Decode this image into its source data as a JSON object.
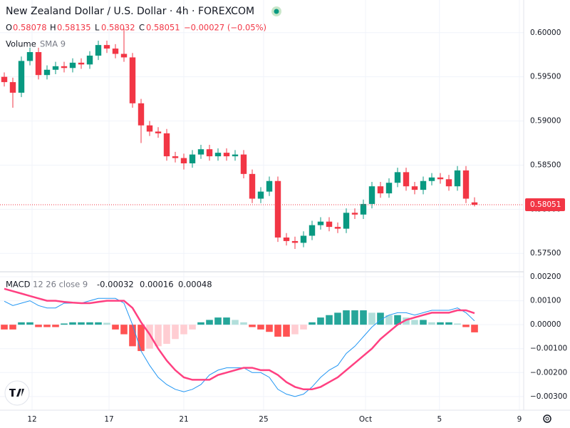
{
  "header": {
    "title": "New Zealand Dollar / U.S. Dollar · 4h · FOREXCOM",
    "ohlc_letters": [
      "O",
      "H",
      "L",
      "C"
    ],
    "change": "−0.00027 (−0.05%)",
    "volume_label": "Volume",
    "volume_params": "SMA 9",
    "macd_label": "MACD",
    "macd_params": "12 26 close 9"
  },
  "chart_data": [
    {
      "type": "candlestick",
      "up_color": "#089981",
      "down_color": "#f23645",
      "grid": true,
      "open": [
        0.595,
        0.5944,
        0.5932,
        0.5968,
        0.5978,
        0.5952,
        0.5958,
        0.5962,
        0.596,
        0.5966,
        0.5964,
        0.5974,
        0.5986,
        0.5982,
        0.5976,
        0.5972,
        0.592,
        0.5895,
        0.5888,
        0.5886,
        0.586,
        0.5858,
        0.5852,
        0.5862,
        0.5868,
        0.586,
        0.5864,
        0.586,
        0.5862,
        0.584,
        0.5812,
        0.582,
        0.5832,
        0.5768,
        0.5764,
        0.5762,
        0.577,
        0.5782,
        0.5786,
        0.578,
        0.5778,
        0.5796,
        0.5794,
        0.5806,
        0.5826,
        0.5818,
        0.583,
        0.5842,
        0.5826,
        0.5822,
        0.5832,
        0.5836,
        0.5834,
        0.5826,
        0.5844,
        0.58078
      ],
      "high": [
        0.5955,
        0.5949,
        0.5973,
        0.5983,
        0.5983,
        0.5963,
        0.5967,
        0.5967,
        0.5971,
        0.5971,
        0.5979,
        0.5991,
        0.5991,
        0.5987,
        0.6005,
        0.5977,
        0.5925,
        0.59,
        0.5893,
        0.5891,
        0.5865,
        0.5863,
        0.5867,
        0.5873,
        0.5873,
        0.5869,
        0.5869,
        0.5867,
        0.5867,
        0.5845,
        0.5825,
        0.5837,
        0.5837,
        0.5773,
        0.5769,
        0.5775,
        0.5787,
        0.5791,
        0.5791,
        0.5785,
        0.5801,
        0.5801,
        0.5811,
        0.5831,
        0.5831,
        0.5835,
        0.5847,
        0.5847,
        0.5831,
        0.5837,
        0.5841,
        0.5841,
        0.5839,
        0.5849,
        0.5849,
        0.58135
      ],
      "low": [
        0.5939,
        0.5915,
        0.5927,
        0.5963,
        0.5947,
        0.5947,
        0.5953,
        0.5955,
        0.5955,
        0.5959,
        0.5959,
        0.5969,
        0.5977,
        0.5971,
        0.5967,
        0.5915,
        0.5875,
        0.5883,
        0.5881,
        0.5855,
        0.5853,
        0.5845,
        0.5847,
        0.5857,
        0.5855,
        0.5855,
        0.5855,
        0.5855,
        0.5835,
        0.5807,
        0.5807,
        0.5815,
        0.5763,
        0.5759,
        0.5755,
        0.5757,
        0.5765,
        0.5777,
        0.5775,
        0.5773,
        0.5773,
        0.5789,
        0.5789,
        0.5801,
        0.5813,
        0.5813,
        0.5825,
        0.5821,
        0.5817,
        0.5817,
        0.5827,
        0.5829,
        0.5821,
        0.5821,
        0.5807,
        0.58032
      ],
      "close": [
        0.5944,
        0.5932,
        0.5968,
        0.5978,
        0.5952,
        0.5958,
        0.5962,
        0.596,
        0.5966,
        0.5964,
        0.5974,
        0.5986,
        0.5982,
        0.5976,
        0.5972,
        0.592,
        0.5895,
        0.5888,
        0.5886,
        0.586,
        0.5858,
        0.5852,
        0.5862,
        0.5868,
        0.586,
        0.5864,
        0.586,
        0.5862,
        0.584,
        0.5812,
        0.582,
        0.5832,
        0.5768,
        0.5764,
        0.5762,
        0.577,
        0.5782,
        0.5786,
        0.578,
        0.5778,
        0.5796,
        0.5794,
        0.5806,
        0.5826,
        0.5818,
        0.583,
        0.5842,
        0.5826,
        0.5822,
        0.5832,
        0.5836,
        0.5834,
        0.5826,
        0.5844,
        0.5812,
        0.58051
      ],
      "xlim": [
        -0.5,
        60.75
      ],
      "xticks": [
        {
          "value": 3.25,
          "label": "12"
        },
        {
          "value": 12.25,
          "label": "17"
        },
        {
          "value": 21,
          "label": "21"
        },
        {
          "value": 30.33,
          "label": "25"
        },
        {
          "value": 42.25,
          "label": "Oct"
        },
        {
          "value": 50.9,
          "label": "5"
        },
        {
          "value": 60.25,
          "label": "9"
        }
      ],
      "ylim": [
        0.573,
        0.6037
      ],
      "yticks": [
        {
          "value": 0.575,
          "label": "0.57500"
        },
        {
          "value": 0.58,
          "label": "0.58000"
        },
        {
          "value": 0.585,
          "label": "0.58500"
        },
        {
          "value": 0.59,
          "label": "0.59000"
        },
        {
          "value": 0.595,
          "label": "0.59500"
        },
        {
          "value": 0.6,
          "label": "0.60000"
        }
      ]
    },
    {
      "type": "macd",
      "grid": true,
      "histogram": {
        "colors": [
          "#26a69a",
          "#b2dfdb",
          "#ffcdd2",
          "#ff5252"
        ],
        "values": [
          -0.0002,
          -0.0002,
          0.0001,
          0.0001,
          -0.0001,
          -0.0001,
          -0.0001,
          5e-05,
          0.0001,
          0.0001,
          0.0001,
          0.0001,
          8e-05,
          -0.0002,
          -0.0004,
          -0.0009,
          -0.0011,
          -0.001,
          -0.0009,
          -0.0008,
          -0.0006,
          -0.0004,
          -0.0002,
          0.0001,
          0.0002,
          0.0003,
          0.0003,
          0.0002,
          0.0001,
          -0.0001,
          -0.0002,
          -0.0003,
          -0.0005,
          -0.0005,
          -0.0004,
          -0.0002,
          0.0001,
          0.0003,
          0.0004,
          0.0005,
          0.0006,
          0.0006,
          0.0006,
          0.0005,
          0.0005,
          0.0004,
          0.0004,
          0.0003,
          0.0002,
          0.0002,
          0.0001,
          0.0001,
          0.0001,
          5e-05,
          -0.0001,
          -0.00032
        ]
      },
      "series": [
        {
          "color": "#2196f3",
          "width": 1,
          "values": [
            0.00098,
            0.0008,
            0.0009,
            0.001,
            0.0008,
            0.0007,
            0.0007,
            0.0009,
            0.0009,
            0.0009,
            0.001,
            0.0011,
            0.0011,
            0.0011,
            0.0009,
            0.0,
            -0.0011,
            -0.0017,
            -0.0022,
            -0.0025,
            -0.0027,
            -0.0028,
            -0.0027,
            -0.0025,
            -0.0021,
            -0.0019,
            -0.0018,
            -0.0018,
            -0.0018,
            -0.002,
            -0.002,
            -0.0022,
            -0.0027,
            -0.0029,
            -0.003,
            -0.0029,
            -0.0026,
            -0.0022,
            -0.0019,
            -0.0017,
            -0.0012,
            -0.0009,
            -0.0005,
            -0.0001,
            0.0002,
            0.0004,
            0.0005,
            0.0005,
            0.0004,
            0.0005,
            0.0006,
            0.0006,
            0.0006,
            0.0007,
            0.0005,
            0.00016
          ]
        },
        {
          "color": "#ff4081",
          "width": 2.5,
          "values": [
            0.0015,
            0.0014,
            0.0013,
            0.0012,
            0.0011,
            0.001,
            0.001,
            0.00095,
            0.00092,
            0.0009,
            0.0009,
            0.00095,
            0.001,
            0.001,
            0.001,
            0.0007,
            0.0001,
            -0.0004,
            -0.001,
            -0.0015,
            -0.0019,
            -0.0022,
            -0.0023,
            -0.0023,
            -0.0023,
            -0.0021,
            -0.002,
            -0.0019,
            -0.0018,
            -0.0018,
            -0.0019,
            -0.0019,
            -0.0021,
            -0.0024,
            -0.0026,
            -0.0027,
            -0.0027,
            -0.0026,
            -0.0024,
            -0.0022,
            -0.0019,
            -0.0016,
            -0.0013,
            -0.001,
            -0.0006,
            -0.0003,
            0.0,
            0.0002,
            0.0003,
            0.0004,
            0.0005,
            0.0005,
            0.0005,
            0.0006,
            0.0006,
            0.00048
          ]
        }
      ],
      "ylim": [
        -0.00357,
        0.00218
      ],
      "yticks": [
        {
          "value": -0.003,
          "label": "−0.00300"
        },
        {
          "value": -0.002,
          "label": "−0.00200"
        },
        {
          "value": -0.001,
          "label": "−0.00100"
        },
        {
          "value": 0,
          "label": "0.00000"
        },
        {
          "value": 0.001,
          "label": "0.00100"
        },
        {
          "value": 0.002,
          "label": "0.00200"
        }
      ]
    }
  ]
}
